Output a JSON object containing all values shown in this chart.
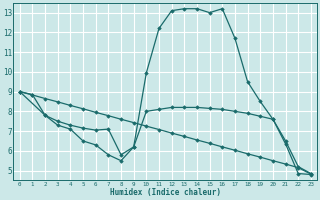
{
  "background_color": "#cce8e8",
  "grid_color": "#ffffff",
  "line_color": "#1a6b6b",
  "xlabel": "Humidex (Indice chaleur)",
  "xlim": [
    -0.5,
    23.5
  ],
  "ylim": [
    4.5,
    13.5
  ],
  "yticks": [
    5,
    6,
    7,
    8,
    9,
    10,
    11,
    12,
    13
  ],
  "xticks": [
    0,
    1,
    2,
    3,
    4,
    5,
    6,
    7,
    8,
    9,
    10,
    11,
    12,
    13,
    14,
    15,
    16,
    17,
    18,
    19,
    20,
    21,
    22,
    23
  ],
  "lines": [
    {
      "x": [
        0,
        1,
        2,
        3,
        4,
        5,
        6,
        7,
        8,
        9,
        10,
        11,
        12,
        13,
        14,
        15,
        16,
        17,
        18,
        19,
        20,
        21,
        22,
        23
      ],
      "y": [
        9.0,
        8.83,
        8.65,
        8.48,
        8.3,
        8.13,
        7.95,
        7.78,
        7.6,
        7.43,
        7.25,
        7.08,
        6.9,
        6.73,
        6.55,
        6.38,
        6.2,
        6.03,
        5.85,
        5.68,
        5.5,
        5.33,
        5.15,
        4.82
      ]
    },
    {
      "x": [
        0,
        1,
        2,
        3,
        4,
        5,
        6,
        7,
        8,
        9,
        10,
        11,
        12,
        13,
        14,
        15,
        16,
        17,
        18,
        19,
        20,
        21,
        22,
        23
      ],
      "y": [
        9.0,
        8.85,
        7.8,
        7.5,
        7.3,
        7.15,
        7.05,
        7.1,
        5.8,
        6.2,
        8.0,
        8.1,
        8.2,
        8.2,
        8.2,
        8.15,
        8.1,
        8.0,
        7.9,
        7.75,
        7.6,
        6.5,
        5.2,
        4.85
      ]
    },
    {
      "x": [
        0,
        2,
        3,
        4,
        5,
        6,
        7,
        8,
        9,
        10,
        11,
        12,
        13,
        14,
        15,
        16,
        17,
        18,
        19,
        20,
        21,
        22,
        23
      ],
      "y": [
        9.0,
        7.8,
        7.3,
        7.1,
        6.5,
        6.3,
        5.8,
        5.5,
        6.2,
        9.95,
        12.2,
        13.1,
        13.2,
        13.2,
        13.0,
        13.2,
        11.7,
        9.5,
        8.5,
        7.6,
        6.35,
        4.85,
        4.8
      ]
    }
  ]
}
